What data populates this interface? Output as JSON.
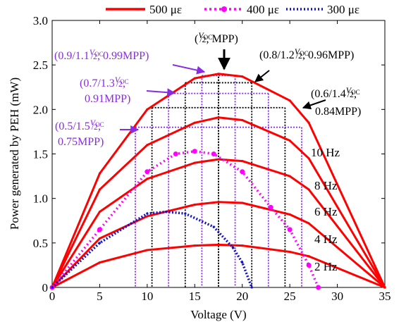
{
  "chart_data": {
    "type": "line",
    "xlabel": "Voltage (V)",
    "ylabel": "Power generated by PEH (mW)",
    "xlim": [
      0,
      35
    ],
    "ylim": [
      0,
      3.0
    ],
    "xticks": [
      "0",
      "5",
      "10",
      "15",
      "20",
      "25",
      "30",
      "35"
    ],
    "yticks": [
      "0",
      "0.5",
      "1.0",
      "1.5",
      "2.0",
      "2.5",
      "3.0"
    ],
    "legend": {
      "placement": "top",
      "entries": [
        "500 με",
        "400 με",
        "300 με"
      ]
    },
    "colors": {
      "s500": "#ff0000",
      "s400": "#ff00ff",
      "s300": "#1010d0",
      "grid": "#000000",
      "annot": "#8a2be2"
    },
    "series": [
      {
        "name": "500 με",
        "label": "2 Hz",
        "style": "solid",
        "x": [
          0,
          5,
          10,
          15,
          17.5,
          20,
          25,
          27,
          35
        ],
        "y": [
          0,
          0.28,
          0.42,
          0.47,
          0.48,
          0.47,
          0.4,
          0.35,
          0
        ]
      },
      {
        "name": "500 με",
        "label": "4 Hz",
        "style": "solid",
        "x": [
          0,
          5,
          10,
          15,
          17.5,
          20,
          25,
          27,
          35
        ],
        "y": [
          0,
          0.55,
          0.8,
          0.93,
          0.96,
          0.95,
          0.82,
          0.72,
          0
        ]
      },
      {
        "name": "500 με",
        "label": "6 Hz",
        "style": "solid",
        "x": [
          0,
          5,
          10,
          15,
          17.5,
          20,
          25,
          27,
          35
        ],
        "y": [
          0,
          0.85,
          1.22,
          1.4,
          1.44,
          1.42,
          1.25,
          1.1,
          0
        ]
      },
      {
        "name": "500 με",
        "label": "8 Hz",
        "style": "solid",
        "x": [
          0,
          5,
          10,
          15,
          17.5,
          20,
          25,
          27,
          35
        ],
        "y": [
          0,
          1.1,
          1.6,
          1.85,
          1.91,
          1.88,
          1.65,
          1.45,
          0
        ]
      },
      {
        "name": "500 με",
        "label": "10 Hz",
        "style": "solid",
        "x": [
          0,
          5,
          10,
          15,
          17.5,
          20,
          25,
          27,
          35
        ],
        "y": [
          0,
          1.28,
          2.0,
          2.35,
          2.4,
          2.37,
          2.1,
          1.85,
          0
        ]
      },
      {
        "name": "400 με",
        "label": "",
        "style": "dotted",
        "x": [
          0,
          5,
          10,
          13,
          15,
          17,
          20,
          23,
          25,
          27,
          28
        ],
        "y": [
          0,
          0.65,
          1.3,
          1.5,
          1.53,
          1.5,
          1.3,
          0.9,
          0.65,
          0.25,
          0
        ]
      },
      {
        "name": "300 με",
        "label": "",
        "style": "dotted",
        "x": [
          0,
          5,
          10,
          12,
          14,
          17,
          19,
          20,
          21
        ],
        "y": [
          0,
          0.5,
          0.83,
          0.85,
          0.83,
          0.68,
          0.45,
          0.28,
          0
        ]
      }
    ],
    "mpp_grid": [
      {
        "v1": 17.5,
        "v2": 17.5,
        "p": 2.4
      },
      {
        "v1": 15.75,
        "v2": 19.25,
        "p": 2.38
      },
      {
        "v1": 14.0,
        "v2": 21.0,
        "p": 2.3
      },
      {
        "v1": 12.25,
        "v2": 22.75,
        "p": 2.18
      },
      {
        "v1": 10.5,
        "v2": 24.5,
        "p": 2.02
      },
      {
        "v1": 8.75,
        "v2": 26.25,
        "p": 1.8
      }
    ],
    "annotations": [
      {
        "text": "(V_OC/2, MPP)",
        "color": "black"
      },
      {
        "text": "(0.9/1.1 V_OC/2, 0.99MPP)",
        "color": "purple"
      },
      {
        "text": "(0.8/1.2 V_OC/2, 0.96MPP)",
        "color": "black"
      },
      {
        "text": "(0.7/1.3 V_OC/2, 0.91MPP)",
        "color": "purple"
      },
      {
        "text": "(0.6/1.4 V_OC/2, 0.84MPP)",
        "color": "black"
      },
      {
        "text": "(0.5/1.5 V_OC/2, 0.75MPP)",
        "color": "purple"
      }
    ]
  }
}
